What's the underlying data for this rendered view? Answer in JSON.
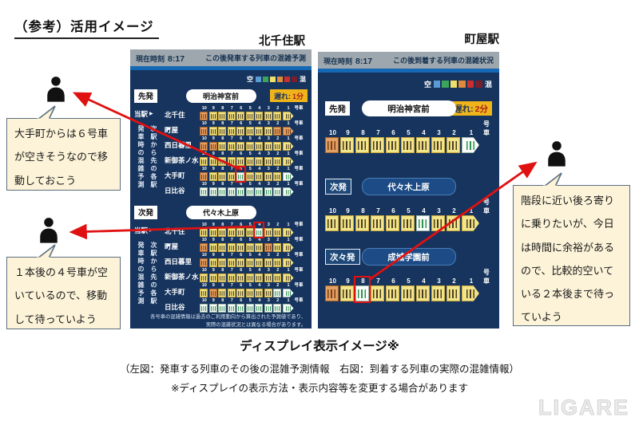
{
  "page": {
    "title": "（参考）活用イメージ",
    "caption_title": "ディスプレイ表示イメージ※",
    "caption_sub1": "（左図：発車する列車のその後の混雑予測情報　右図：到着する列車の実際の混雑情報）",
    "caption_sub2": "※ディスプレイの表示方法・表示内容等を変更する場合があります",
    "watermark": "LIGARE"
  },
  "colors": {
    "legend": [
      "#5B9BD5",
      "#3CA45C",
      "#EFE06A",
      "#E08A3C",
      "#CC2E2E",
      "#7A1E2C"
    ],
    "car_empty": "#FBFDFB",
    "car_mid": "#F2E488",
    "car_crowded": "#E5A163",
    "accent_red": "#E01111",
    "panel_bg": "#16345E",
    "header_bg": "#9EA7AE",
    "delay_badge_bg": "#F0B41B"
  },
  "train": {
    "numbers": [
      "10",
      "9",
      "8",
      "7",
      "6",
      "5",
      "4",
      "3",
      "2",
      "1"
    ],
    "unit": "号車"
  },
  "bubbles": [
    {
      "text": "大手町からは６号車が空きそうなので移動しておこう"
    },
    {
      "text": "１本後の４号車が空いているので、移動して待っていよう"
    },
    {
      "text": "階段に近い後ろ寄りに乗りたいが、今日は時間に余裕があるので、比較的空いている２本後まで待っていよう"
    }
  ],
  "left_panel": {
    "station_label": "北千住駅",
    "header": {
      "time_label": "現在時刻",
      "time": "8:17",
      "title": "この後発車する列車の混雑予測"
    },
    "legend": {
      "empty": "空",
      "crowded": "混"
    },
    "side_labels": {
      "current": "当駅",
      "arrow": "▶",
      "depart_vertical": "発車時の混雑予測",
      "next_vertical": "次駅から先の各駅"
    },
    "footer": [
      "各号車の混雑情報は過去のご利用動向から算出された予測値であり、",
      "実際の混雑状況とは異なる場合があります。"
    ],
    "sections": [
      {
        "tag": "先発",
        "destination": "明治神宮前",
        "delay_label": "遅れ:",
        "delay_value": "1分",
        "rows": [
          {
            "station": "北千住",
            "cars": "oyyyyyyyyy",
            "highlight": -1
          },
          {
            "station": "町屋",
            "cars": "oyyyyyyyoo",
            "highlight": -1
          },
          {
            "station": "西日暮里",
            "cars": "ooyyyyyyyy",
            "highlight": -1
          },
          {
            "station": "新御茶ノ水",
            "cars": "yyyyyyyyyy",
            "highlight": -1
          },
          {
            "station": "大手町",
            "cars": "oyyygyyyyg",
            "highlight": 4
          },
          {
            "station": "日比谷",
            "cars": "gggggggggg",
            "highlight": -1
          }
        ]
      },
      {
        "tag": "次発",
        "destination": "代々木上原",
        "delay_label": "",
        "delay_value": "",
        "rows": [
          {
            "station": "北千住",
            "cars": "yyyyyygyyy",
            "highlight": 6
          },
          {
            "station": "町屋",
            "cars": "oyyyyyyoyy",
            "highlight": -1
          },
          {
            "station": "西日暮里",
            "cars": "oyyyyyyyyy",
            "highlight": -1
          },
          {
            "station": "新御茶ノ水",
            "cars": "yyyyyyyyyy",
            "highlight": -1
          },
          {
            "station": "大手町",
            "cars": "yoyyyyyygg",
            "highlight": -1
          },
          {
            "station": "日比谷",
            "cars": "gggggggggg",
            "highlight": -1
          }
        ]
      }
    ]
  },
  "right_panel": {
    "station_label": "町屋駅",
    "header": {
      "time_label": "現在時刻",
      "time": "8:17",
      "title": "この後到着する列車の混雑状況"
    },
    "legend": {
      "empty": "空",
      "crowded": "混"
    },
    "sections": [
      {
        "tag": "先発",
        "destination": "明治神宮前",
        "style": "white",
        "delay_label": "遅れ:",
        "delay_value": "2分",
        "cars": "oyyyyyyyyg",
        "highlight": -1
      },
      {
        "tag": "次発",
        "destination": "代々木上原",
        "style": "blue",
        "delay_label": "",
        "delay_value": "",
        "cars": "yyyyyygyyy",
        "highlight": -1
      },
      {
        "tag": "次々発",
        "destination": "成城学園前",
        "style": "blue",
        "delay_label": "",
        "delay_value": "",
        "cars": "oygyyyyyyy",
        "highlight": 2
      }
    ]
  }
}
